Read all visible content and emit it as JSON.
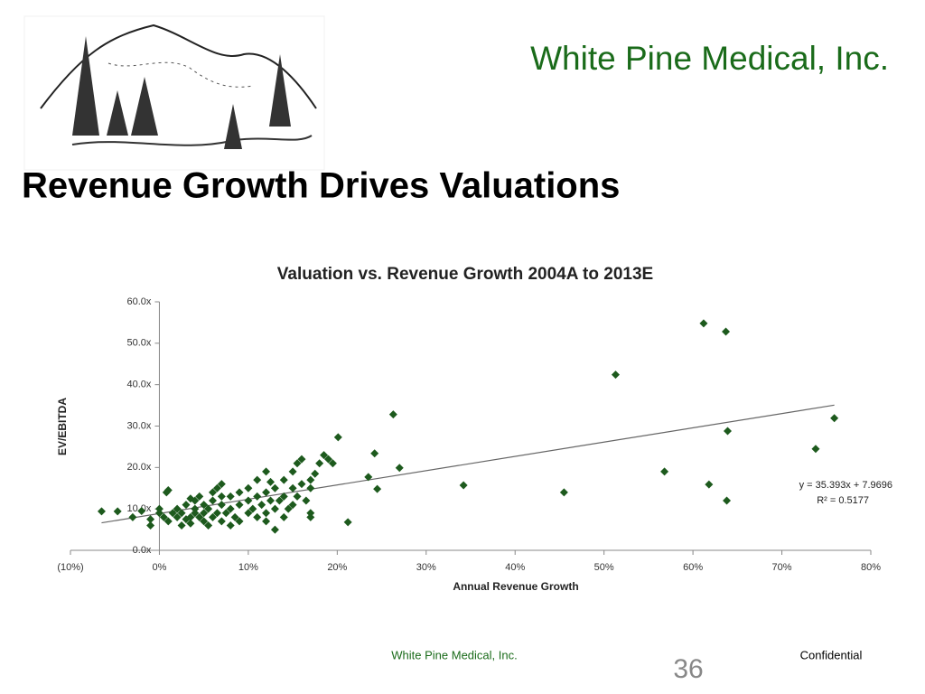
{
  "header": {
    "company": "White Pine Medical, Inc.",
    "title": "Revenue Growth Drives Valuations"
  },
  "chart_data": {
    "type": "scatter",
    "title": "Valuation vs. Revenue Growth 2004A to 2013E",
    "x_label": "Annual Revenue Growth",
    "y_label": "EV/EBITDA",
    "color": "#1d5a1d",
    "annotations": [
      "y = 35.393x + 7.9696",
      "R² = 0.5177"
    ],
    "trendline": true,
    "xlim": [
      -10,
      80
    ],
    "xticks": [
      {
        "value": -10,
        "label": "(10%)"
      },
      {
        "value": 0,
        "label": "0%"
      },
      {
        "value": 10,
        "label": "10%"
      },
      {
        "value": 20,
        "label": "20%"
      },
      {
        "value": 30,
        "label": "30%"
      },
      {
        "value": 40,
        "label": "40%"
      },
      {
        "value": 50,
        "label": "50%"
      },
      {
        "value": 60,
        "label": "60%"
      },
      {
        "value": 70,
        "label": "70%"
      },
      {
        "value": 80,
        "label": "80%"
      }
    ],
    "ylim": [
      0,
      60
    ],
    "yticks": [
      {
        "value": 0,
        "label": "0.0x"
      },
      {
        "value": 10,
        "label": "10.0x"
      },
      {
        "value": 20,
        "label": "20.0x"
      },
      {
        "value": 30,
        "label": "30.0x"
      },
      {
        "value": 40,
        "label": "40.0x"
      },
      {
        "value": 50,
        "label": "50.0x"
      },
      {
        "value": 60,
        "label": "60.0x"
      }
    ],
    "x": [
      61.2,
      63.7,
      51.3,
      26.3,
      20.1,
      75.9,
      63.9,
      73.8,
      24.2,
      27.0,
      56.8,
      23.5,
      34.2,
      24.5,
      61.8,
      45.5,
      63.8,
      21.2,
      -6.5,
      -4.7,
      -3,
      -2,
      -1,
      -1,
      0,
      0,
      0.5,
      1,
      0.8,
      1,
      1.5,
      2,
      2,
      2.5,
      3,
      3,
      3.5,
      3.5,
      4,
      4,
      4,
      4.5,
      4.5,
      5,
      5,
      5,
      5.5,
      5.5,
      6,
      6,
      6,
      6.5,
      7,
      7,
      7,
      7,
      7.5,
      8,
      8,
      8,
      8.5,
      9,
      9,
      10,
      10,
      10,
      10.5,
      11,
      11,
      11,
      11.5,
      12,
      12,
      12,
      12,
      12.5,
      13,
      13,
      13,
      13.5,
      14,
      14,
      14,
      14.5,
      15,
      15,
      15,
      15.5,
      15.5,
      16,
      16,
      16.5,
      17,
      17,
      17,
      17,
      17.5,
      18,
      18.5,
      19,
      19.5,
      6.5,
      2.5,
      3.5,
      9,
      12.5
    ],
    "values": [
      54.8,
      52.8,
      42.4,
      32.8,
      27.3,
      31.9,
      28.8,
      24.5,
      23.4,
      19.9,
      19.0,
      17.7,
      15.7,
      14.8,
      15.9,
      14.0,
      12.0,
      6.8,
      9.4,
      9.4,
      8,
      9.5,
      7.5,
      6,
      9,
      10,
      8,
      14.5,
      14,
      7,
      9,
      8,
      10,
      9,
      7.5,
      11,
      8,
      6.5,
      9,
      12,
      10,
      8,
      13,
      7,
      9,
      11,
      6,
      10,
      8,
      12,
      14,
      9,
      7,
      11,
      13,
      16,
      9,
      6,
      10,
      13,
      8,
      11,
      14,
      9,
      12,
      15,
      10,
      8,
      13,
      17,
      11,
      7,
      9,
      14,
      19,
      12,
      5,
      10,
      15,
      12,
      8,
      13,
      17,
      10,
      11,
      15,
      19,
      13,
      21,
      16,
      22,
      12,
      8,
      9,
      15,
      17,
      18.5,
      21,
      23,
      22,
      21,
      15,
      6,
      12.5,
      7,
      16.5
    ]
  },
  "footer": {
    "company": "White Pine Medical, Inc.",
    "page": "36",
    "note": "Confidential"
  }
}
